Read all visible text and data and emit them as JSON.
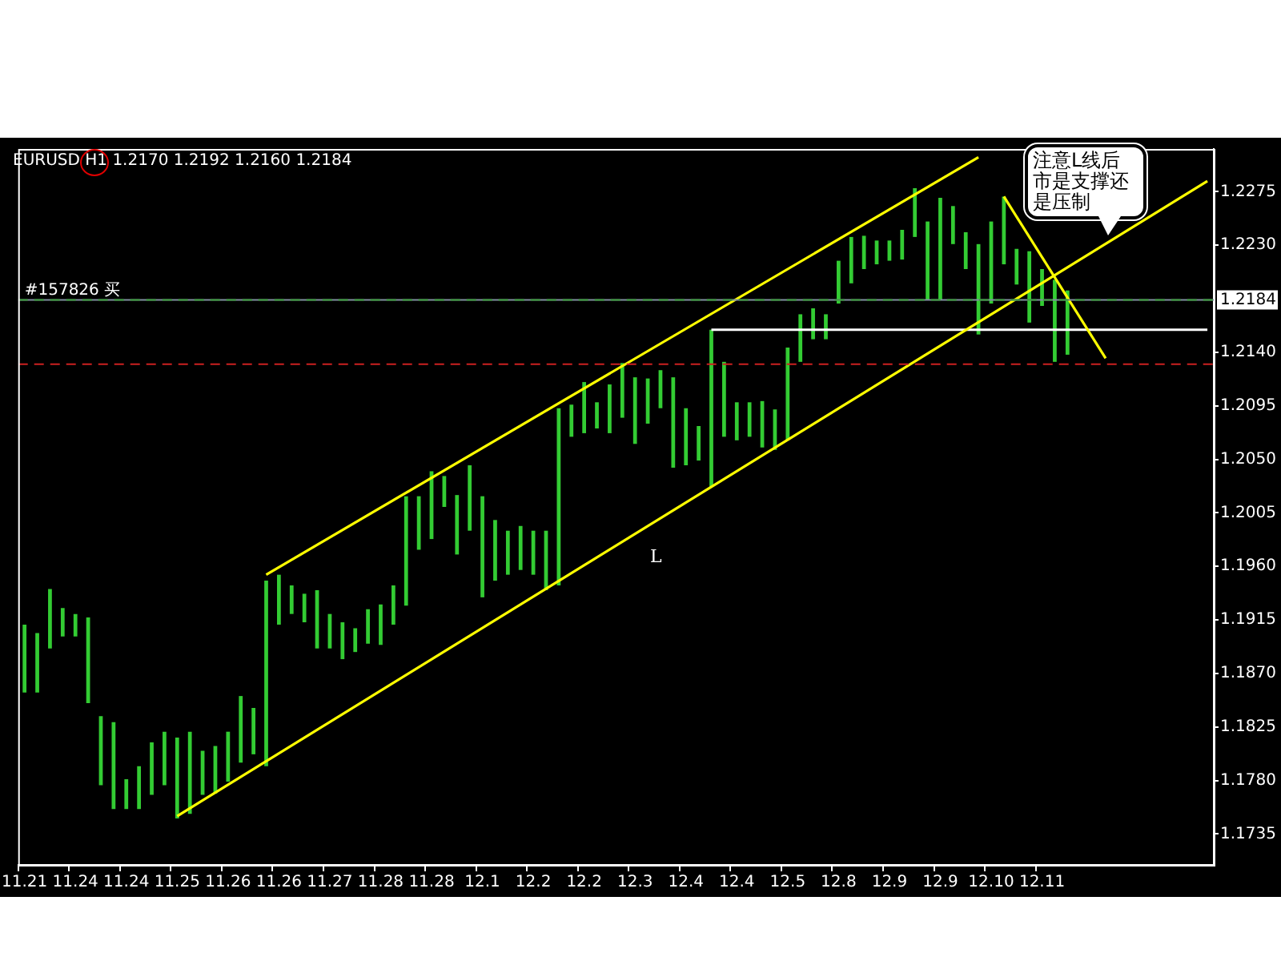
{
  "chart_data": {
    "type": "bar",
    "title": "EURUSD H1 1.2170 1.2192 1.2160 1.2184",
    "categories": [
      "11.21",
      null,
      null,
      null,
      "11.24",
      null,
      null,
      null,
      "11.24",
      null,
      null,
      null,
      "11.25",
      null,
      null,
      null,
      "11.26",
      null,
      null,
      null,
      "11.26",
      null,
      null,
      null,
      "11.27",
      null,
      null,
      null,
      "11.28",
      null,
      null,
      null,
      "11.28",
      null,
      null,
      null,
      "12.1",
      null,
      null,
      null,
      "12.2",
      null,
      null,
      null,
      "12.2",
      null,
      null,
      null,
      "12.3",
      null,
      null,
      null,
      "12.4",
      null,
      null,
      null,
      "12.4",
      null,
      null,
      null,
      "12.5",
      null,
      null,
      null,
      "12.8",
      null,
      null,
      null,
      "12.9",
      null,
      null,
      null,
      "12.9",
      null,
      null,
      null,
      "12.10",
      null,
      null,
      null,
      "12.11",
      null,
      null,
      null,
      null,
      null,
      null,
      null,
      null,
      null,
      null,
      null,
      null,
      null
    ],
    "series": [
      {
        "color": "#33cc33",
        "base": [
          1.1854,
          1.1854,
          1.1891,
          1.1901,
          1.1901,
          1.1845,
          1.1776,
          1.1756,
          1.1756,
          1.1756,
          1.1768,
          1.1776,
          1.1748,
          1.1752,
          1.1768,
          1.1769,
          1.1779,
          1.1795,
          1.1802,
          1.1792,
          1.1911,
          1.192,
          1.1913,
          1.1891,
          1.1891,
          1.1882,
          1.1888,
          1.1895,
          1.1894,
          1.1911,
          1.1927,
          1.1974,
          1.1983,
          1.201,
          1.197,
          1.199,
          1.1934,
          1.1948,
          1.1953,
          1.1957,
          1.1953,
          1.194,
          1.1944,
          1.2069,
          1.2072,
          1.2076,
          1.2072,
          1.2085,
          1.2063,
          1.208,
          1.2093,
          1.2043,
          1.2045,
          1.2049,
          1.2027,
          1.2069,
          1.2066,
          1.2069,
          1.206,
          1.2058,
          1.2066,
          1.2132,
          1.2151,
          1.2151,
          1.2181,
          1.2198,
          1.221,
          1.2214,
          1.2217,
          1.2218,
          1.2237,
          1.2184,
          1.2184,
          1.2231,
          1.221,
          1.2155,
          1.2181,
          1.2214,
          1.2197,
          1.2165,
          1.2179,
          1.2132,
          1.2138,
          null,
          null,
          null,
          null,
          null,
          null,
          null,
          null,
          null,
          null,
          null
        ],
        "values": [
          0.0057,
          0.005,
          0.005,
          0.0024,
          0.0019,
          0.0072,
          0.0058,
          0.0073,
          0.0025,
          0.0036,
          0.0044,
          0.0045,
          0.0068,
          0.0069,
          0.0037,
          0.004,
          0.0042,
          0.0056,
          0.0039,
          0.0156,
          0.0042,
          0.0024,
          0.0024,
          0.0049,
          0.0029,
          0.0031,
          0.002,
          0.0029,
          0.0034,
          0.0033,
          0.0092,
          0.0045,
          0.0057,
          0.0026,
          0.005,
          0.0055,
          0.0085,
          0.0051,
          0.0037,
          0.0037,
          0.0037,
          0.005,
          0.0149,
          0.0027,
          0.0043,
          0.0022,
          0.0041,
          0.0046,
          0.0056,
          0.0038,
          0.0032,
          0.0076,
          0.0048,
          0.0029,
          0.0132,
          0.0063,
          0.0032,
          0.0029,
          0.0039,
          0.0034,
          0.0078,
          0.004,
          0.0026,
          0.0021,
          0.0036,
          0.0039,
          0.0028,
          0.002,
          0.0017,
          0.0025,
          0.0041,
          0.0066,
          0.0086,
          0.0032,
          0.0031,
          0.0076,
          0.0069,
          0.0057,
          0.003,
          0.006,
          0.0031,
          0.0069,
          0.0054,
          null,
          null,
          null,
          null,
          null,
          null,
          null,
          null,
          null,
          null,
          null
        ]
      },
      {
        "type": "line",
        "color": "#ffff00",
        "values": [
          null,
          null,
          null,
          null,
          null,
          null,
          null,
          null,
          null,
          null,
          null,
          null,
          null,
          null,
          null,
          null,
          null,
          null,
          null,
          1.1953,
          null,
          null,
          null,
          null,
          null,
          null,
          null,
          null,
          null,
          null,
          null,
          null,
          null,
          null,
          null,
          null,
          null,
          null,
          null,
          null,
          null,
          null,
          null,
          null,
          null,
          null,
          null,
          null,
          null,
          null,
          null,
          null,
          null,
          null,
          null,
          null,
          null,
          null,
          null,
          null,
          null,
          null,
          null,
          null,
          null,
          null,
          null,
          null,
          null,
          null,
          null,
          null,
          null,
          null,
          null,
          1.2304,
          null,
          null,
          null,
          null,
          null,
          null,
          null,
          null,
          null,
          null,
          null,
          null,
          null,
          null,
          null,
          null,
          null,
          null
        ]
      },
      {
        "type": "line",
        "color": "#ffff00",
        "values": [
          null,
          null,
          null,
          null,
          null,
          null,
          null,
          null,
          null,
          null,
          null,
          null,
          1.175,
          null,
          null,
          null,
          null,
          null,
          null,
          null,
          null,
          null,
          null,
          null,
          null,
          null,
          null,
          null,
          null,
          null,
          null,
          null,
          null,
          null,
          null,
          null,
          null,
          null,
          null,
          null,
          null,
          null,
          null,
          null,
          null,
          null,
          null,
          null,
          null,
          null,
          null,
          null,
          null,
          null,
          null,
          null,
          null,
          null,
          null,
          null,
          null,
          null,
          null,
          null,
          null,
          null,
          null,
          null,
          null,
          null,
          null,
          null,
          null,
          null,
          null,
          null,
          null,
          null,
          null,
          null,
          null,
          null,
          null,
          null,
          null,
          null,
          null,
          null,
          null,
          null,
          null,
          null,
          null,
          1.2284
        ]
      },
      {
        "type": "line",
        "color": "#ffff00",
        "values": [
          null,
          null,
          null,
          null,
          null,
          null,
          null,
          null,
          null,
          null,
          null,
          null,
          null,
          null,
          null,
          null,
          null,
          null,
          null,
          null,
          null,
          null,
          null,
          null,
          null,
          null,
          null,
          null,
          null,
          null,
          null,
          null,
          null,
          null,
          null,
          null,
          null,
          null,
          null,
          null,
          null,
          null,
          null,
          null,
          null,
          null,
          null,
          null,
          null,
          null,
          null,
          null,
          null,
          null,
          null,
          null,
          null,
          null,
          null,
          null,
          null,
          null,
          null,
          null,
          null,
          null,
          null,
          null,
          null,
          null,
          null,
          null,
          null,
          null,
          null,
          null,
          null,
          1.2271,
          null,
          null,
          null,
          null,
          null,
          null,
          null,
          1.2135,
          null,
          null,
          null,
          null,
          null,
          null,
          null,
          null
        ]
      },
      {
        "type": "line",
        "color": "#ffffff",
        "values": [
          null,
          null,
          null,
          null,
          null,
          null,
          null,
          null,
          null,
          null,
          null,
          null,
          null,
          null,
          null,
          null,
          null,
          null,
          null,
          null,
          null,
          null,
          null,
          null,
          null,
          null,
          null,
          null,
          null,
          null,
          null,
          null,
          null,
          null,
          null,
          null,
          null,
          null,
          null,
          null,
          null,
          null,
          null,
          null,
          null,
          null,
          null,
          null,
          null,
          null,
          null,
          null,
          null,
          null,
          1.2159,
          null,
          null,
          null,
          null,
          null,
          null,
          null,
          null,
          null,
          null,
          null,
          null,
          null,
          null,
          null,
          null,
          null,
          null,
          null,
          null,
          null,
          null,
          null,
          null,
          null,
          null,
          null,
          null,
          null,
          null,
          null,
          null,
          null,
          null,
          null,
          null,
          null,
          null,
          1.2159
        ]
      }
    ],
    "ylim": [
      1.1709,
      1.2311
    ],
    "yticks": [
      {
        "value": 1.1735,
        "label": "1.1735"
      },
      {
        "value": 1.178,
        "label": "1.1780"
      },
      {
        "value": 1.1825,
        "label": "1.1825"
      },
      {
        "value": 1.187,
        "label": "1.1870"
      },
      {
        "value": 1.1915,
        "label": "1.1915"
      },
      {
        "value": 1.196,
        "label": "1.1960"
      },
      {
        "value": 1.2005,
        "label": "1.2005"
      },
      {
        "value": 1.205,
        "label": "1.2050"
      },
      {
        "value": 1.2095,
        "label": "1.2095"
      },
      {
        "value": 1.214,
        "label": "1.2140"
      },
      {
        "value": 1.223,
        "label": "1.2230"
      },
      {
        "value": 1.2275,
        "label": "1.2275"
      }
    ],
    "ref_lines": [
      {
        "axis": "y",
        "value": 1.2184,
        "label": "1.2184",
        "color": "#8090a0",
        "line_style": "solid"
      },
      {
        "axis": "y",
        "value": 1.2184,
        "label": "#157826 买",
        "color": "#3a9a3a",
        "line_style": "dashed"
      },
      {
        "axis": "y",
        "value": 1.213,
        "color": "#cc2020",
        "line_style": "dashed"
      }
    ],
    "annotations": [
      "注意L线后市是支撑还是压制",
      "L"
    ]
  }
}
